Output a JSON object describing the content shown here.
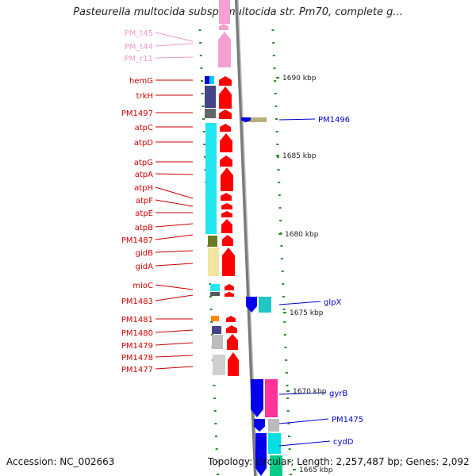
{
  "title": "Pasteurella multocida subsp. multocida str. Pm70, complete g...",
  "footer": {
    "accession": "Accession: NC_002663",
    "topology": "Topology: circular; Length: 2,257,487 bp; Genes: 2,092"
  },
  "colors": {
    "rna_label": "#f09ac8",
    "reverse_label": "#cc0000",
    "forward_label": "#0000cc",
    "backbone": "#888888",
    "tick": "#2e8b2e",
    "arrow_reverse": "#ff0000",
    "arrow_forward": "#0000ee",
    "arrow_rna": "#f4a0d0"
  },
  "scale_labels": [
    "1690 kbp",
    "1685 kbp",
    "1680 kbp",
    "1675 kbp",
    "1670 kbp",
    "1665 kbp"
  ],
  "left_labels": [
    {
      "text": "PM_t45",
      "kind": "rna"
    },
    {
      "text": "PM_t44",
      "kind": "rna"
    },
    {
      "text": "PM_r11",
      "kind": "rna"
    },
    {
      "text": "hemG",
      "kind": "reverse"
    },
    {
      "text": "trkH",
      "kind": "reverse"
    },
    {
      "text": "PM1497",
      "kind": "reverse"
    },
    {
      "text": "atpC",
      "kind": "reverse"
    },
    {
      "text": "atpD",
      "kind": "reverse"
    },
    {
      "text": "atpG",
      "kind": "reverse"
    },
    {
      "text": "atpA",
      "kind": "reverse"
    },
    {
      "text": "atpH",
      "kind": "reverse"
    },
    {
      "text": "atpF",
      "kind": "reverse"
    },
    {
      "text": "atpE",
      "kind": "reverse"
    },
    {
      "text": "atpB",
      "kind": "reverse"
    },
    {
      "text": "PM1487",
      "kind": "reverse"
    },
    {
      "text": "gidB",
      "kind": "reverse"
    },
    {
      "text": "gidA",
      "kind": "reverse"
    },
    {
      "text": "mioC",
      "kind": "reverse"
    },
    {
      "text": "PM1483",
      "kind": "reverse"
    },
    {
      "text": "PM1481",
      "kind": "reverse"
    },
    {
      "text": "PM1480",
      "kind": "reverse"
    },
    {
      "text": "PM1479",
      "kind": "reverse"
    },
    {
      "text": "PM1478",
      "kind": "reverse"
    },
    {
      "text": "PM1477",
      "kind": "reverse"
    }
  ],
  "right_labels": [
    {
      "text": "PM1496",
      "kind": "forward"
    },
    {
      "text": "glpX",
      "kind": "forward"
    },
    {
      "text": "gyrB",
      "kind": "forward"
    },
    {
      "text": "PM1475",
      "kind": "forward"
    },
    {
      "text": "cydD",
      "kind": "forward"
    }
  ]
}
